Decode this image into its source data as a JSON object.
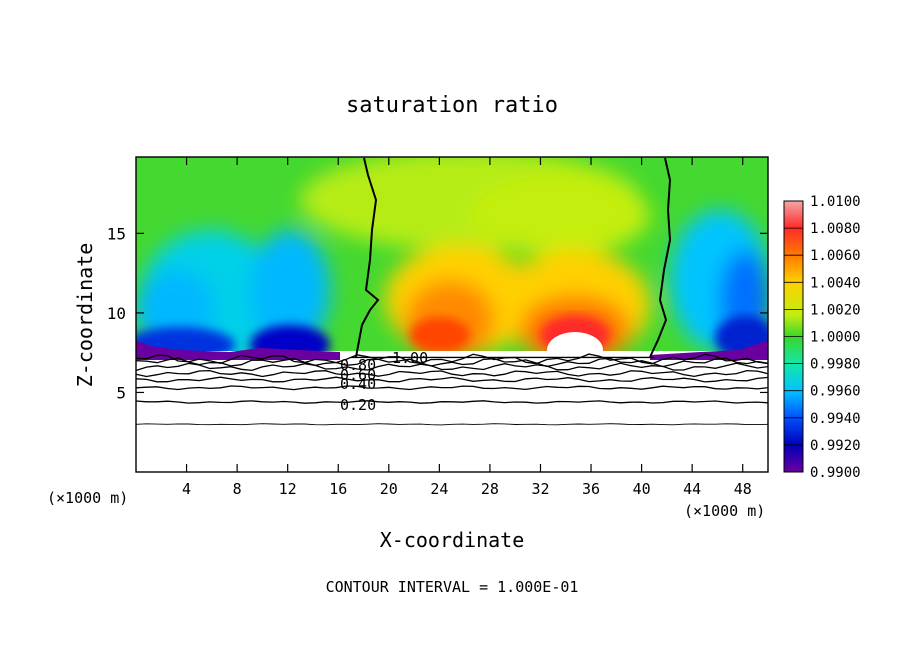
{
  "chart_data": {
    "type": "heatmap",
    "title": "saturation ratio",
    "xlabel": "X-coordinate",
    "ylabel": "Z-coordinate",
    "x_unit": "(×1000 m)",
    "x_unit_right": "(×1000 m)",
    "footer": "CONTOUR INTERVAL = 1.000E-01",
    "xlim": [
      0,
      50
    ],
    "ylim": [
      0,
      19.8
    ],
    "x_ticks": [
      4,
      8,
      12,
      16,
      20,
      24,
      28,
      32,
      36,
      40,
      44,
      48
    ],
    "y_ticks": [
      5,
      10,
      15
    ],
    "colorbar": {
      "min": 0.99,
      "max": 1.01,
      "tick_labels": [
        "1.0100",
        "1.0080",
        "1.0060",
        "1.0040",
        "1.0020",
        "1.0000",
        "0.9980",
        "0.9960",
        "0.9940",
        "0.9920",
        "0.9900"
      ],
      "tick_values": [
        1.01,
        1.008,
        1.006,
        1.004,
        1.002,
        1.0,
        0.998,
        0.996,
        0.994,
        0.992,
        0.99
      ],
      "colors": [
        "#f4a6a6",
        "#ff2a2a",
        "#ff7a00",
        "#ffd000",
        "#c4ee10",
        "#3ad62a",
        "#16e6a8",
        "#00c4ff",
        "#0050ff",
        "#0000b8",
        "#6a00a0"
      ]
    },
    "contour_lines": [
      {
        "level": 0.2,
        "label": "0.20"
      },
      {
        "level": 0.4,
        "label": "0.40"
      },
      {
        "level": 0.6,
        "label": "0.60"
      },
      {
        "level": 0.8,
        "label": "0.80"
      },
      {
        "level": 1.0,
        "label": "1.00"
      }
    ],
    "contour_heights_km": [
      3.0,
      4.4,
      5.3,
      5.8,
      6.2,
      6.6,
      6.9,
      7.1
    ],
    "ground_top_km": 7.2,
    "saturated_boundary_x_km": [
      17.5,
      41.5
    ]
  }
}
